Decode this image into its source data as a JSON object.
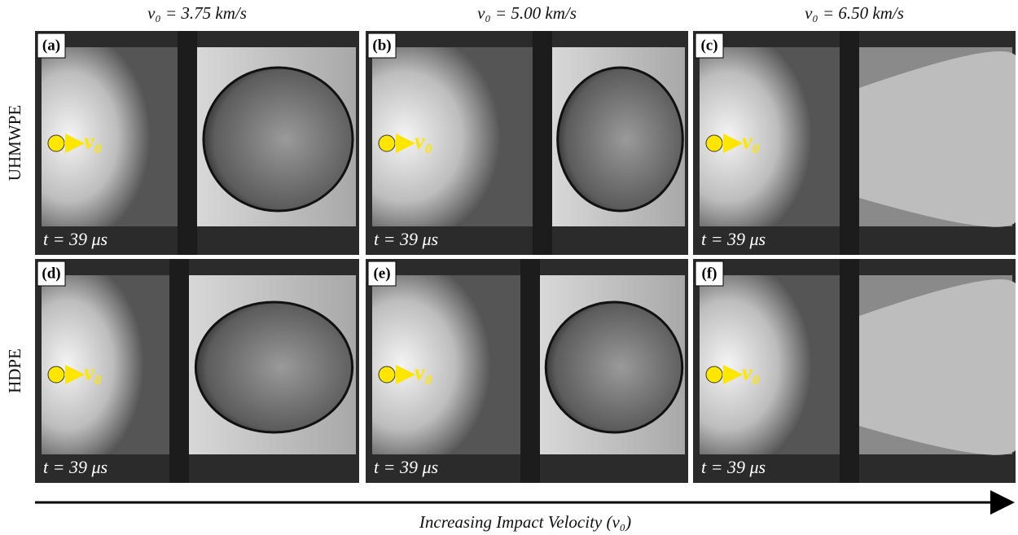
{
  "columns": [
    {
      "header": "v₀ = 3.75 km/s"
    },
    {
      "header": "v₀ = 5.00 km/s"
    },
    {
      "header": "v₀ = 6.50 km/s"
    }
  ],
  "rows": [
    {
      "label": "UHMWPE"
    },
    {
      "label": "HDPE"
    }
  ],
  "panels": [
    {
      "label": "(a)",
      "marker": "v₀",
      "time": "t = 39 μs"
    },
    {
      "label": "(b)",
      "marker": "v₀",
      "time": "t = 39 μs"
    },
    {
      "label": "(c)",
      "marker": "v₀",
      "time": "t = 39 μs"
    },
    {
      "label": "(d)",
      "marker": "v₀",
      "time": "t = 39 μs"
    },
    {
      "label": "(e)",
      "marker": "v₀",
      "time": "t = 39 μs"
    },
    {
      "label": "(f)",
      "marker": "v₀",
      "time": "t = 39 μs"
    }
  ],
  "axis": {
    "caption": "Increasing Impact Velocity (v₀)"
  }
}
